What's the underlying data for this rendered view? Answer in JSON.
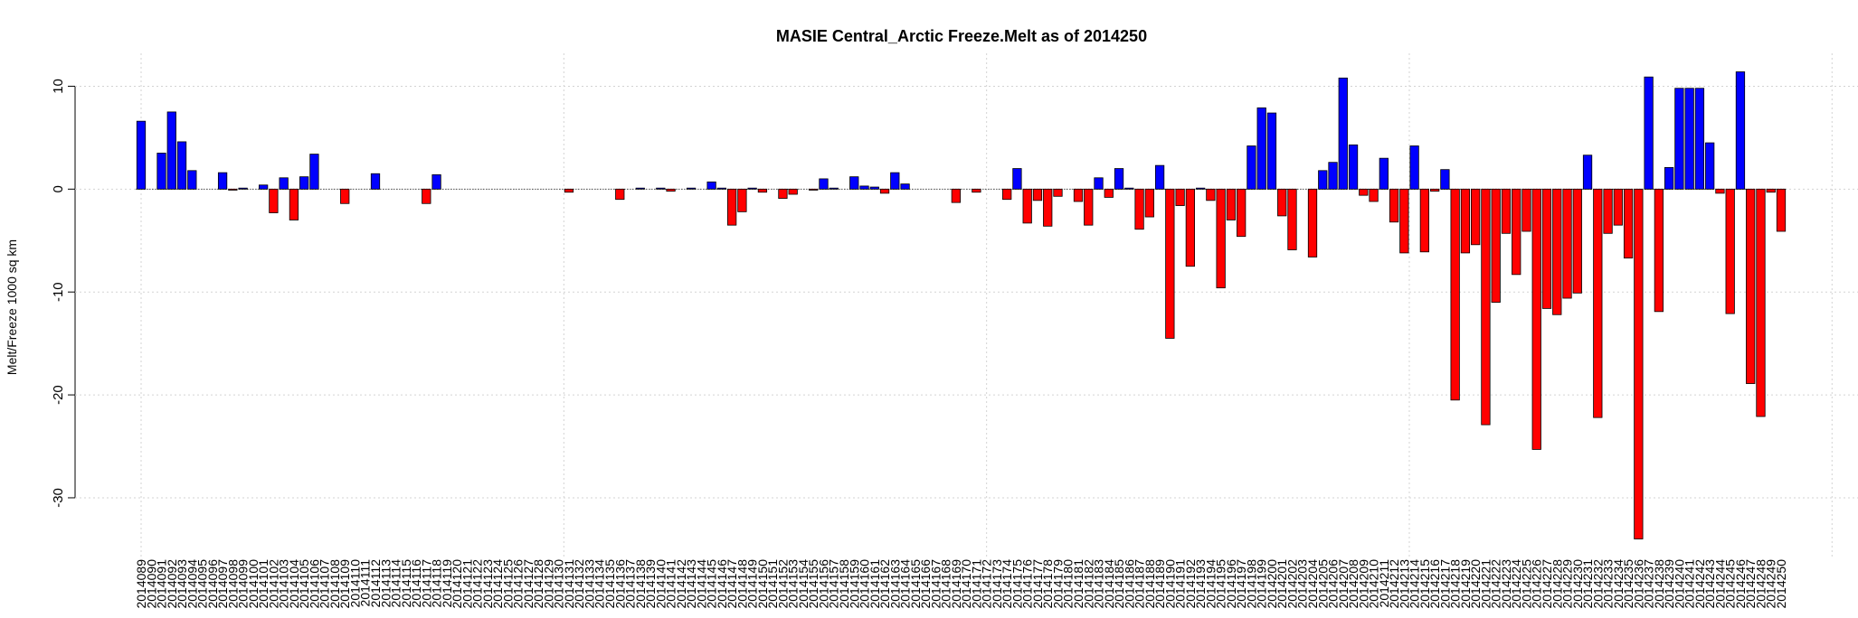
{
  "chart_data": {
    "type": "bar",
    "title": "MASIE Central_Arctic Freeze.Melt as of 2014250",
    "y_label": "Melt/Freeze 1000 sq km",
    "categories": [
      "2014089",
      "2014090",
      "2014091",
      "2014092",
      "2014093",
      "2014094",
      "2014095",
      "2014096",
      "2014097",
      "2014098",
      "2014099",
      "2014100",
      "2014101",
      "2014102",
      "2014103",
      "2014104",
      "2014105",
      "2014106",
      "2014107",
      "2014108",
      "2014109",
      "2014110",
      "2014111",
      "2014112",
      "2014113",
      "2014114",
      "2014115",
      "2014116",
      "2014117",
      "2014118",
      "2014119",
      "2014120",
      "2014121",
      "2014122",
      "2014123",
      "2014124",
      "2014125",
      "2014126",
      "2014127",
      "2014128",
      "2014129",
      "2014130",
      "2014131",
      "2014132",
      "2014133",
      "2014134",
      "2014135",
      "2014136",
      "2014137",
      "2014138",
      "2014139",
      "2014140",
      "2014141",
      "2014142",
      "2014143",
      "2014144",
      "2014145",
      "2014146",
      "2014147",
      "2014148",
      "2014149",
      "2014150",
      "2014151",
      "2014152",
      "2014153",
      "2014154",
      "2014155",
      "2014156",
      "2014157",
      "2014158",
      "2014159",
      "2014160",
      "2014161",
      "2014162",
      "2014163",
      "2014164",
      "2014165",
      "2014166",
      "2014167",
      "2014168",
      "2014169",
      "2014170",
      "2014171",
      "2014172",
      "2014173",
      "2014174",
      "2014175",
      "2014176",
      "2014177",
      "2014178",
      "2014179",
      "2014180",
      "2014181",
      "2014182",
      "2014183",
      "2014184",
      "2014185",
      "2014186",
      "2014187",
      "2014188",
      "2014189",
      "2014190",
      "2014191",
      "2014192",
      "2014193",
      "2014194",
      "2014195",
      "2014196",
      "2014197",
      "2014198",
      "2014199",
      "2014200",
      "2014201",
      "2014202",
      "2014203",
      "2014204",
      "2014205",
      "2014206",
      "2014207",
      "2014208",
      "2014209",
      "2014210",
      "2014211",
      "2014212",
      "2014213",
      "2014214",
      "2014215",
      "2014216",
      "2014217",
      "2014218",
      "2014219",
      "2014220",
      "2014221",
      "2014222",
      "2014223",
      "2014224",
      "2014225",
      "2014226",
      "2014227",
      "2014228",
      "2014229",
      "2014230",
      "2014231",
      "2014232",
      "2014233",
      "2014234",
      "2014235",
      "2014236",
      "2014237",
      "2014238",
      "2014239",
      "2014240",
      "2014241",
      "2014242",
      "2014243",
      "2014244",
      "2014245",
      "2014246",
      "2014247",
      "2014248",
      "2014249",
      "2014250"
    ],
    "values": [
      6.6,
      0,
      3.5,
      7.5,
      4.6,
      1.8,
      0,
      0,
      1.6,
      -0.1,
      0.1,
      0,
      0.4,
      -2.3,
      1.1,
      -3.0,
      1.2,
      3.4,
      0,
      0,
      -1.4,
      0,
      0,
      1.5,
      0,
      0,
      0,
      0,
      -1.4,
      1.4,
      0,
      0,
      0,
      0,
      0,
      0,
      0,
      0,
      0,
      0,
      0,
      0,
      -0.3,
      0,
      0,
      0,
      0,
      -1.0,
      0,
      0.1,
      0,
      0.1,
      -0.2,
      0,
      0.1,
      0,
      0.7,
      0.1,
      -3.5,
      -2.2,
      0.1,
      -0.3,
      0,
      -0.9,
      -0.5,
      0,
      -0.1,
      1.0,
      0.1,
      0,
      1.2,
      0.3,
      0.2,
      -0.4,
      1.6,
      0.5,
      0,
      0,
      0,
      0,
      -1.3,
      0,
      -0.3,
      0,
      0,
      -1.0,
      2.0,
      -3.3,
      -1.1,
      -3.6,
      -0.7,
      0,
      -1.2,
      -3.5,
      1.1,
      -0.8,
      2.0,
      0.1,
      -3.9,
      -2.7,
      2.3,
      -14.5,
      -1.6,
      -7.5,
      0.1,
      -1.1,
      -9.6,
      -3.0,
      -4.6,
      4.2,
      7.9,
      7.4,
      -2.6,
      -5.9,
      0,
      -6.6,
      1.8,
      2.6,
      10.8,
      4.3,
      -0.6,
      -1.2,
      3.0,
      -3.2,
      -6.2,
      4.2,
      -6.1,
      -0.2,
      1.9,
      -20.5,
      -6.2,
      -5.4,
      -22.9,
      -11.0,
      -4.3,
      -8.3,
      -4.1,
      -25.3,
      -11.6,
      -12.2,
      -10.6,
      -10.1,
      3.3,
      -22.2,
      -4.3,
      -3.5,
      -6.7,
      -34.0,
      10.9,
      -11.9,
      2.1,
      9.8,
      9.8,
      9.8,
      4.5,
      -0.4,
      -12.1,
      11.4,
      -18.9,
      -22.1,
      -0.3,
      -4.1
    ],
    "positive_color": "#0000ff",
    "negative_color": "#ff0000",
    "ylim": [
      -35.8,
      13.2
    ],
    "yticks": [
      10,
      0,
      -10,
      -20,
      -30
    ],
    "grid": true
  }
}
